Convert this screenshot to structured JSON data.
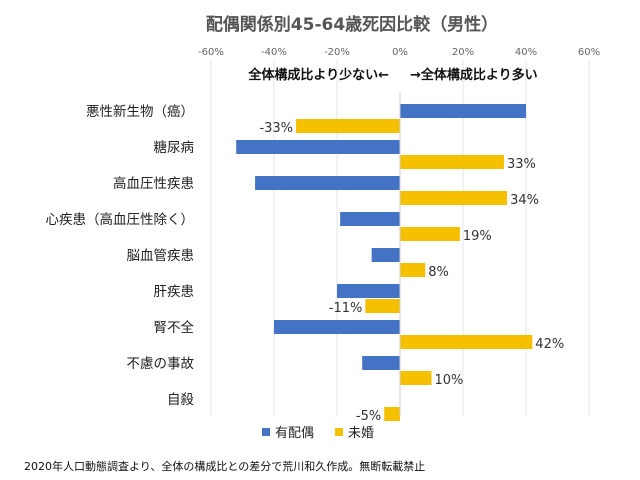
{
  "chart_data": {
    "type": "bar",
    "orientation": "horizontal",
    "title": "配偶関係別45-64歳死因比較（男性）",
    "x_ticks": [
      "-60%",
      "-40%",
      "-20%",
      "0%",
      "20%",
      "40%",
      "60%"
    ],
    "xlim": [
      -60,
      60
    ],
    "annotation_left": "全体構成比より少ない←",
    "annotation_right": "→全体構成比より多い",
    "categories": [
      "悪性新生物（癌）",
      "糖尿病",
      "高血圧性疾患",
      "心疾患（高血圧性除く）",
      "脳血管疾患",
      "肝疾患",
      "腎不全",
      "不慮の事故",
      "自殺"
    ],
    "series": [
      {
        "name": "有配偶",
        "color": "#4472c4",
        "values": [
          40,
          -52,
          -46,
          -19,
          -9,
          -20,
          -40,
          -12,
          0
        ]
      },
      {
        "name": "未婚",
        "color": "#f5c000",
        "values": [
          -33,
          33,
          34,
          19,
          8,
          -11,
          42,
          10,
          -5
        ]
      }
    ],
    "data_labels": {
      "未婚": [
        "-33%",
        "33%",
        "34%",
        "19%",
        "8%",
        "-11%",
        "42%",
        "10%",
        "-5%"
      ]
    },
    "legend": [
      "有配偶",
      "未婚"
    ],
    "legend_position": "bottom",
    "grid": "vertical",
    "footnote": "2020年人口動態調査より、全体の構成比との差分で荒川和久作成。無断転載禁止"
  }
}
